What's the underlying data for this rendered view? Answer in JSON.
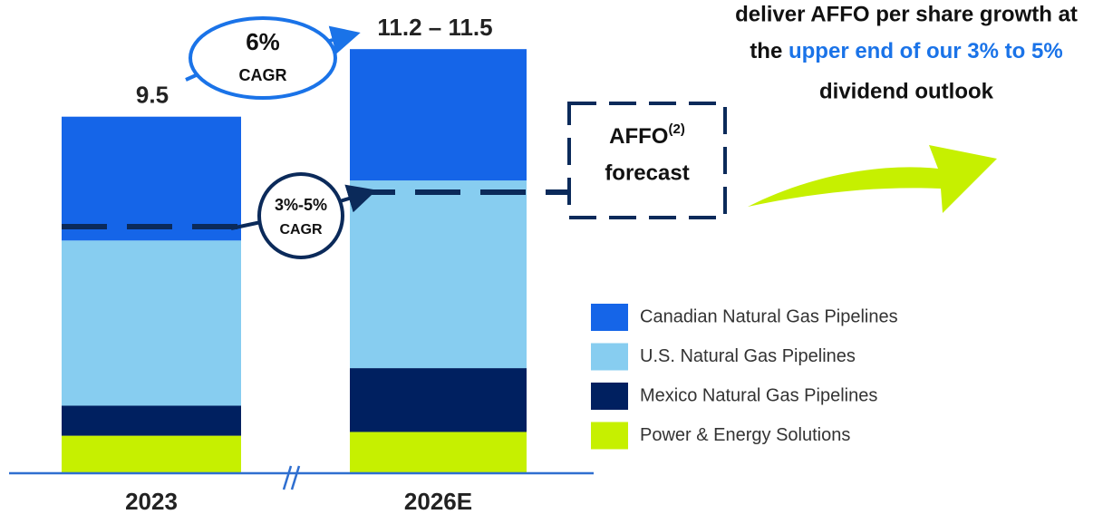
{
  "chart_data": {
    "type": "stacked_bar",
    "headline": [
      "deliver AFFO per share growth at",
      "the",
      "upper end of our 3% to 5%",
      "dividend outlook"
    ],
    "categories": [
      "2023",
      "2026E"
    ],
    "series": [
      {
        "name": "Power & Energy Solutions",
        "color": "#c6f000",
        "values": [
          1.0,
          1.1
        ]
      },
      {
        "name": "Mexico Natural Gas Pipelines",
        "color": "#002060",
        "values": [
          0.8,
          1.7
        ]
      },
      {
        "name": "U.S. Natural Gas Pipelines",
        "color": "#87cdf0",
        "values": [
          4.4,
          5.0
        ]
      },
      {
        "name": "Canadian Natural Gas Pipelines",
        "color": "#1565e8",
        "values": [
          3.3,
          3.5
        ]
      }
    ],
    "total_labels": [
      "9.5",
      "11.2 – 11.5"
    ],
    "annotations": {
      "total_cagr": {
        "value": "6%",
        "label": "CAGR"
      },
      "dividend_cagr": {
        "value": "3%-5%",
        "label": "CAGR"
      },
      "forecast_box": {
        "text": "AFFO",
        "superscript": "(2)",
        "line2": "forecast"
      }
    },
    "legend": "right"
  }
}
